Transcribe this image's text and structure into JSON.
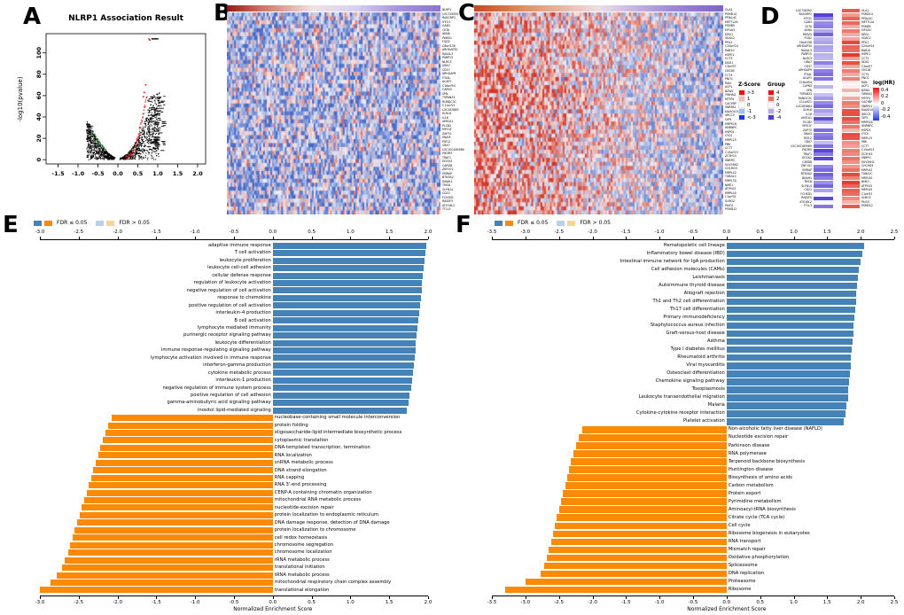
{
  "figure": {
    "panels": [
      "A",
      "B",
      "C",
      "D",
      "E",
      "F"
    ]
  },
  "colors": {
    "bar_blue": "#4482B8",
    "bar_orange": "#FC8A06",
    "bar_blue_light": "#B9D1E9",
    "bar_orange_light": "#FBD491",
    "heat_red": "#D23728",
    "heat_blue": "#4669C8",
    "strip_purple": "#4C36D6",
    "strip_red": "#E2341F",
    "volcano_red": "#E60000",
    "volcano_green": "#1B7E1B"
  },
  "chart_data": [
    {
      "id": "volcano",
      "type": "scatter",
      "title": "NLRP1 Association Result",
      "xlabel": "",
      "ylabel": "-log10(pvalue)",
      "xticks": [
        "-1.5",
        "-1.0",
        "-0.5",
        "0.0",
        "0.5",
        "1.0",
        "1.5",
        "2.0"
      ],
      "yticks": [
        0,
        20,
        40,
        60,
        80,
        100
      ],
      "xlim": [
        -1.8,
        2.2
      ],
      "ylim": [
        -4,
        118
      ],
      "clouds": {
        "negative_correlation": {
          "x_range": [
            -0.78,
            -0.04
          ],
          "max_neg_log10_p": 35,
          "edge_color": "green"
        },
        "positive_correlation": {
          "x_range": [
            0.04,
            1.05
          ],
          "max_neg_log10_p": 62,
          "edge_color": "red"
        }
      },
      "highlight_points": [
        {
          "x": 0.78,
          "y": 113,
          "color": "red"
        },
        {
          "x": 0.8,
          "y": 112,
          "color": "red"
        },
        {
          "x": 0.7,
          "y": 70,
          "color": "red"
        },
        {
          "x": 0.66,
          "y": 63,
          "color": "red"
        },
        {
          "x": 0.64,
          "y": 59,
          "color": "red"
        }
      ]
    },
    {
      "id": "gsea_go",
      "type": "bar",
      "orientation": "horizontal",
      "xlabel": "Normalized Enrichment Score",
      "xlim": [
        -3.0,
        2.0
      ],
      "xticks": [
        "-3.0",
        "-2.5",
        "-2.0",
        "-1.5",
        "-1.0",
        "-0.5",
        "0.0",
        "0.5",
        "1.0",
        "1.5",
        "2.0"
      ],
      "legend": {
        "sig": "FDR ≤ 0.05",
        "nonsig": "FDR > 0.05"
      },
      "series": [
        {
          "name": "positively enriched (FDR ≤ 0.05)",
          "color": "#4482B8",
          "labels": [
            "adaptive immune response",
            "T cell activation",
            "leukocyte proliferation",
            "leukocyte cell-cell adhesion",
            "cellular defense response",
            "regulation of leukocyte activation",
            "negative regulation of cell activation",
            "response to chemokine",
            "positive regulation of cell activation",
            "interleukin-4 production",
            "B cell activation",
            "lymphocyte mediated immunity",
            "purinergic receptor signaling pathway",
            "leukocyte differentiation",
            "immune response-regulating signaling pathway",
            "lymphocyte activation involved in immune response",
            "interferon-gamma production",
            "cytokine metabolic process",
            "interleukin-1 production",
            "negative regulation of immune system process",
            "positive regulation of cell adhesion",
            "gamma-aminobutyric acid signaling pathway",
            "inositol lipid-mediated signaling"
          ],
          "values": [
            1.97,
            1.96,
            1.95,
            1.94,
            1.93,
            1.92,
            1.91,
            1.9,
            1.89,
            1.88,
            1.87,
            1.86,
            1.85,
            1.84,
            1.83,
            1.82,
            1.81,
            1.8,
            1.79,
            1.78,
            1.76,
            1.74,
            1.72
          ]
        },
        {
          "name": "negatively enriched (FDR ≤ 0.05)",
          "color": "#FC8A06",
          "labels": [
            "nucleobase-containing small molecule interconversion",
            "protein folding",
            "oligosaccharide-lipid intermediate biosynthetic process",
            "cytoplasmic translation",
            "DNA-templated transcription, termination",
            "RNA localization",
            "snRNA metabolic process",
            "DNA strand elongation",
            "RNA capping",
            "RNA 3'-end processing",
            "CENP-A containing chromatin organization",
            "mitochondrial RNA metabolic process",
            "nucleotide-excision repair",
            "protein localization to endoplasmic reticulum",
            "DNA damage response, detection of DNA damage",
            "protein localization to chromosome",
            "cell redox homeostasis",
            "chromosome segregation",
            "chromosome localization",
            "rRNA metabolic process",
            "translational initiation",
            "tRNA metabolic process",
            "mitochondrial respiratory chain complex assembly",
            "translational elongation"
          ],
          "values": [
            -2.08,
            -2.12,
            -2.16,
            -2.19,
            -2.22,
            -2.25,
            -2.28,
            -2.31,
            -2.34,
            -2.37,
            -2.4,
            -2.43,
            -2.46,
            -2.49,
            -2.52,
            -2.55,
            -2.58,
            -2.61,
            -2.64,
            -2.68,
            -2.72,
            -2.78,
            -2.86,
            -3.0
          ]
        }
      ]
    },
    {
      "id": "gsea_kegg",
      "type": "bar",
      "orientation": "horizontal",
      "xlabel": "Normalized Enrichment Score",
      "xlim": [
        -3.5,
        2.5
      ],
      "xticks": [
        "-3.5",
        "-3.0",
        "-2.5",
        "-2.0",
        "-1.5",
        "-1.0",
        "-0.5",
        "0.0",
        "0.5",
        "1.0",
        "1.5",
        "2.0",
        "2.5"
      ],
      "legend": {
        "sig": "FDR ≤ 0.05",
        "nonsig": "FDR > 0.05"
      },
      "series": [
        {
          "name": "positively enriched (FDR ≤ 0.05)",
          "color": "#4482B8",
          "labels": [
            "Hematopoietic cell lineage",
            "Inflammatory bowel disease (IBD)",
            "Intestinal immune network for IgA production",
            "Cell adhesion molecules (CAMs)",
            "Leishmaniasis",
            "Autoimmune thyroid disease",
            "Allograft rejection",
            "Th1 and Th2 cell differentiation",
            "Th17 cell differentiation",
            "Primary immunodeficiency",
            "Staphylococcus aureus infection",
            "Graft-versus-host disease",
            "Asthma",
            "Type I diabetes mellitus",
            "Rheumatoid arthritis",
            "Viral myocarditis",
            "Osteoclast differentiation",
            "Chemokine signaling pathway",
            "Toxoplasmosis",
            "Leukocyte transendothelial migration",
            "Malaria",
            "Cytokine-cytokine receptor interaction",
            "Platelet activation"
          ],
          "values": [
            2.05,
            2.02,
            1.99,
            1.97,
            1.95,
            1.94,
            1.93,
            1.92,
            1.91,
            1.9,
            1.89,
            1.88,
            1.87,
            1.86,
            1.85,
            1.84,
            1.83,
            1.82,
            1.81,
            1.8,
            1.78,
            1.76,
            1.74
          ]
        },
        {
          "name": "negatively enriched (FDR ≤ 0.05)",
          "color": "#FC8A06",
          "labels": [
            "Non-alcoholic fatty liver disease (NAFLD)",
            "Nucleotide excision repair",
            "Parkinson disease",
            "RNA polymerase",
            "Terpenoid backbone biosynthesis",
            "Huntington disease",
            "Biosynthesis of amino acids",
            "Carbon metabolism",
            "Protein export",
            "Pyrimidine metabolism",
            "Aminoacyl-tRNA biosynthesis",
            "Citrate cycle (TCA cycle)",
            "Cell cycle",
            "Ribosome biogenesis in eukaryotes",
            "RNA transport",
            "Mismatch repair",
            "Oxidative phosphorylation",
            "Spliceosome",
            "DNA replication",
            "Proteasome",
            "Ribosome"
          ],
          "values": [
            -2.15,
            -2.2,
            -2.24,
            -2.28,
            -2.32,
            -2.35,
            -2.38,
            -2.41,
            -2.44,
            -2.47,
            -2.5,
            -2.53,
            -2.56,
            -2.59,
            -2.62,
            -2.65,
            -2.68,
            -2.72,
            -2.78,
            -3.0,
            -3.3
          ]
        }
      ]
    }
  ],
  "panelB": {
    "description": "expression heatmap of genes negatively associated with NLRP1",
    "genes": [
      "NLRP1",
      "LOC728392",
      "RASGRP2",
      "IFFO1",
      "GAB3",
      "CIITA",
      "AKNA",
      "PARVG",
      "FGD2",
      "C6orf136",
      "ARHGAP30",
      "RASAL3",
      "PARP15",
      "NLRC3",
      "UBA7",
      "CD37",
      "ARHGAP9",
      "ITGAL",
      "ACAP1",
      "C16orf54",
      "CAPN3",
      "SPN",
      "TSPAN33",
      "RUNDC3C",
      "C11orf21",
      "LOC283663",
      "KLHL6",
      "IL16",
      "AMICA1",
      "PLCB2",
      "MYO1F",
      "ZAP70",
      "SNAI3",
      "PATL2",
      "CBX7",
      "LOC100189589",
      "PIK3R5",
      "TRAF1",
      "DOCK2",
      "CARD8",
      "ZNF101",
      "EMRAP",
      "BTN3A2",
      "DNAH1",
      "TMC8",
      "SLFN14",
      "CD22",
      "FCHSD1",
      "RASSF5",
      "ATG16L2",
      "TTLL3"
    ]
  },
  "panelC": {
    "description": "expression heatmap of genes positively associated with NLRP1",
    "genes": [
      "OLA1",
      "PSMD14",
      "PPIAL4C",
      "METTL2A",
      "PSMB5",
      "EIF4A3",
      "DRG1",
      "VDAC2",
      "PPIL1",
      "C20orf24",
      "RAB10",
      "HSPE1",
      "CCT3",
      "DDX1",
      "C3orf57",
      "CKS1B",
      "CCT4",
      "PNO1",
      "RAN",
      "ACP1",
      "BZW2",
      "YWHAQ",
      "MTFR1",
      "CACYBP",
      "SNRPA1",
      "KIAA0101",
      "XRCC5",
      "OIP5",
      "MRPS16",
      "HNRNPC",
      "HSPD1",
      "CYCS",
      "MRPL15",
      "PBK",
      "CCT7",
      "C15orf23",
      "ZC3H15",
      "SNRPG",
      "SUV39H2",
      "CHCHD3",
      "MRPL42",
      "TUBA1C",
      "MRPL30",
      "NME1",
      "ATP5G3",
      "MRPL45",
      "C1orf31",
      "SLMO2",
      "PAICS",
      "PSMD12"
    ]
  },
  "panelD": {
    "left_genes": [
      "LOC728392",
      "RASGRP2",
      "IFFO1",
      "GAB3",
      "CIITA",
      "AKNA",
      "PARVG",
      "FGD2",
      "C6orf136",
      "ARHGAP30",
      "RASAL3",
      "PARP15",
      "NLRC3",
      "UBA7",
      "CD37",
      "ARHGAP9",
      "ITGAL",
      "ACAP1",
      "C16orf54",
      "CAPN3",
      "SPN",
      "TSPAN33",
      "RUNDC3C",
      "C11orf21",
      "LOC283663",
      "KLHL6",
      "IL16",
      "AMICA1",
      "PLCB2",
      "MYO1F",
      "ZAP70",
      "SNAI3",
      "PATL2",
      "CBX7",
      "LOC100189589",
      "PIK3R5",
      "TRAF1",
      "DOCK2",
      "CARD8",
      "ZNF101",
      "EMRAP",
      "BTN3A2",
      "DNAH1",
      "TMC8",
      "SLFN14",
      "CD22",
      "FCHSD1",
      "RASSF5",
      "ATG16L2",
      "TTLL3"
    ],
    "right_genes": [
      "OLA1",
      "PSMD14",
      "PPIAL4C",
      "METTL2A",
      "PSMB5",
      "EIF4A3",
      "DRG1",
      "VDAC2",
      "PPIL1",
      "C20orf24",
      "RAB10",
      "HSPE1",
      "CCT3",
      "DDX1",
      "C3orf57",
      "CKS1B",
      "CCT4",
      "PNO1",
      "RAN",
      "ACP1",
      "BZW2",
      "YWHAQ",
      "MTFR1",
      "CACYBP",
      "SNRPA1",
      "KIAA0101",
      "XRCC5",
      "OIP5",
      "MRPS16",
      "HNRNPC",
      "HSPD1",
      "CYCS",
      "MRPL15",
      "PBK",
      "CCT7",
      "C15orf23",
      "ZC3H15",
      "SNRPG",
      "SUV39H2",
      "CHCHD3",
      "MRPL42",
      "TUBA1C",
      "MRPL30",
      "NME1",
      "ATP5G3",
      "MRPL45",
      "C1orf31",
      "SLMO2",
      "PAICS",
      "PSMD12"
    ],
    "zscore_legend": {
      "title": "Z-Score",
      "items": [
        {
          "label": ">3",
          "color": "#FA0B0B"
        },
        {
          "label": "1",
          "color": "#FBB9B4"
        },
        {
          "label": "0",
          "color": "#FFFFFF"
        },
        {
          "label": "-1",
          "color": "#9CC4EC"
        },
        {
          "label": "<-3",
          "color": "#2437EE"
        }
      ]
    },
    "group_legend": {
      "title": "Group",
      "items": [
        {
          "label": "4",
          "color": "#F90B0B"
        },
        {
          "label": "2",
          "color": "#F2705B"
        },
        {
          "label": "0",
          "color": "#FFFFFF"
        },
        {
          "label": "-2",
          "color": "#BBA8E6"
        },
        {
          "label": "-4",
          "color": "#4E3BDA"
        }
      ]
    },
    "loghr_legend": {
      "title": "log(HR)",
      "ticks": [
        "0.4",
        "0.2",
        "0",
        "-0.2",
        "-0.4"
      ],
      "top_color": "#F90B0B",
      "mid_color": "#FFFFFF",
      "bottom_color": "#2437EE"
    }
  }
}
